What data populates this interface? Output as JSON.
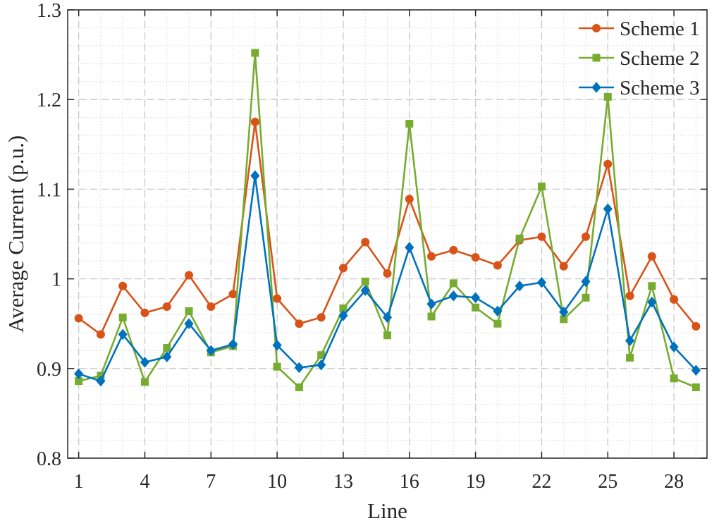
{
  "chart_data": {
    "type": "line",
    "title": "",
    "xlabel": "Line",
    "ylabel": "Average Current (p.u.)",
    "xlim": [
      0.5,
      29.5
    ],
    "ylim": [
      0.8,
      1.3
    ],
    "xticks": [
      1,
      4,
      7,
      10,
      13,
      16,
      19,
      22,
      25,
      28
    ],
    "yticks": [
      0.8,
      0.9,
      1.0,
      1.1,
      1.2,
      1.3
    ],
    "ytick_labels": [
      "0.8",
      "0.9",
      "1",
      "1.1",
      "1.2",
      "1.3"
    ],
    "grid": true,
    "legend_position": "top-right",
    "x": [
      1,
      2,
      3,
      4,
      5,
      6,
      7,
      8,
      9,
      10,
      11,
      12,
      13,
      14,
      15,
      16,
      17,
      18,
      19,
      20,
      21,
      22,
      23,
      24,
      25,
      26,
      27,
      28,
      29
    ],
    "series": [
      {
        "name": "Scheme 1",
        "color": "#D95319",
        "marker": "circle",
        "values": [
          0.956,
          0.938,
          0.992,
          0.962,
          0.969,
          1.004,
          0.969,
          0.983,
          1.175,
          0.978,
          0.95,
          0.957,
          1.012,
          1.041,
          1.006,
          1.089,
          1.025,
          1.032,
          1.024,
          1.015,
          1.043,
          1.047,
          1.014,
          1.047,
          1.128,
          0.981,
          1.025,
          0.977,
          0.947
        ]
      },
      {
        "name": "Scheme 2",
        "color": "#77AC30",
        "marker": "square",
        "values": [
          0.886,
          0.892,
          0.957,
          0.885,
          0.923,
          0.964,
          0.918,
          0.925,
          1.252,
          0.902,
          0.879,
          0.915,
          0.967,
          0.997,
          0.937,
          1.173,
          0.958,
          0.995,
          0.968,
          0.95,
          1.045,
          1.103,
          0.955,
          0.979,
          1.203,
          0.912,
          0.992,
          0.889,
          0.879
        ]
      },
      {
        "name": "Scheme 3",
        "color": "#0072BD",
        "marker": "diamond",
        "values": [
          0.894,
          0.886,
          0.938,
          0.907,
          0.913,
          0.95,
          0.92,
          0.927,
          1.115,
          0.926,
          0.901,
          0.904,
          0.959,
          0.987,
          0.957,
          1.035,
          0.972,
          0.981,
          0.979,
          0.964,
          0.992,
          0.996,
          0.963,
          0.997,
          1.078,
          0.931,
          0.974,
          0.924,
          0.898
        ]
      }
    ]
  }
}
